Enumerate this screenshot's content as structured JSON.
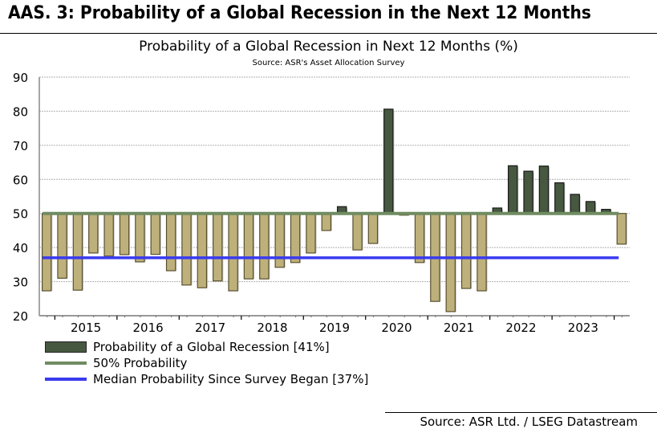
{
  "header": {
    "title": "AAS. 3: Probability of a Global Recession in the Next 12 Months"
  },
  "footer": {
    "source": "Source: ASR Ltd. / LSEG Datastream"
  },
  "colors": {
    "above_bar": "#465840",
    "below_bar": "#bdb07a",
    "threshold_line": "#6f8c60",
    "median_line": "#3a3af0",
    "grid": "#b0b0b0"
  },
  "chart_data": {
    "type": "bar",
    "title": "Probability of a Global Recession in Next 12 Months (%)",
    "subtitle": "Source: ASR's Asset Allocation Survey",
    "xlabel": "",
    "ylabel": "",
    "ylim": [
      20,
      90
    ],
    "yticks": [
      20,
      30,
      40,
      50,
      60,
      70,
      80,
      90
    ],
    "grid": true,
    "baseline": 50,
    "x_tick_labels": [
      "2015",
      "2016",
      "2017",
      "2018",
      "2019",
      "2020",
      "2021",
      "2022",
      "2023"
    ],
    "x_years_start_index": 1,
    "bars_per_year": 4,
    "values": [
      27.3,
      31,
      27.5,
      38.4,
      37.5,
      37.9,
      35.8,
      38,
      33.2,
      29,
      28.2,
      30.2,
      27.3,
      30.8,
      30.8,
      34.2,
      35.6,
      38.4,
      45,
      52,
      39.3,
      41.2,
      80.6,
      49.5,
      35.6,
      24.2,
      21.2,
      28,
      27.3,
      51.6,
      64,
      62.4,
      63.9,
      59,
      55.6,
      53.5,
      51.2,
      41
    ],
    "series": [
      {
        "name": "Probability of a Global Recession [41%]",
        "kind": "bar"
      },
      {
        "name": "50% Probability",
        "kind": "line",
        "value": 50
      },
      {
        "name": "Median Probability Since Survey Began [37%]",
        "kind": "line",
        "value": 37
      }
    ],
    "legend_position": "bottom-left"
  }
}
